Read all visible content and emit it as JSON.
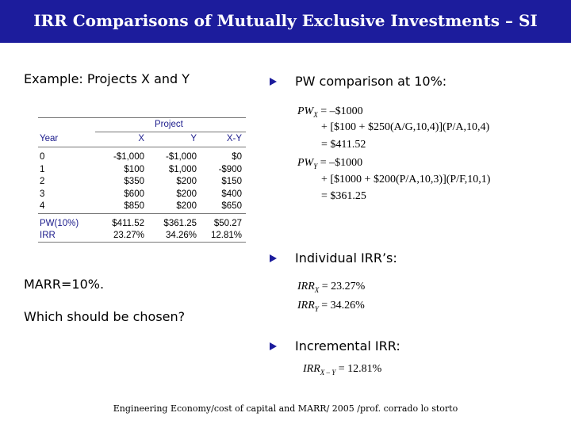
{
  "header": {
    "title": "IRR Comparisons of Mutually Exclusive Investments – SI"
  },
  "left": {
    "example": "Example: Projects X and Y",
    "marr": "MARR=10%.",
    "question": "Which should be chosen?"
  },
  "table": {
    "group_header": "Project",
    "columns": [
      "Year",
      "X",
      "Y",
      "X-Y"
    ],
    "rows": [
      [
        "0",
        "-$1,000",
        "-$1,000",
        "$0"
      ],
      [
        "1",
        "$100",
        "$1,000",
        "-$900"
      ],
      [
        "2",
        "$350",
        "$200",
        "$150"
      ],
      [
        "3",
        "$600",
        "$200",
        "$400"
      ],
      [
        "4",
        "$850",
        "$200",
        "$650"
      ]
    ],
    "summary": [
      [
        "PW(10%)",
        "$411.52",
        "$361.25",
        "$50.27"
      ],
      [
        "IRR",
        "23.27%",
        "34.26%",
        "12.81%"
      ]
    ]
  },
  "bullets": [
    {
      "text": "PW comparison at 10%:",
      "equations": [
        {
          "lhs": "PW",
          "sub": "X",
          "rhs": "= –$1000"
        },
        {
          "rhs": "+ [$100 + $250(A/G,10,4)](P/A,10,4)"
        },
        {
          "rhs": "= $411.52"
        },
        {
          "lhs": "PW",
          "sub": "Y",
          "rhs": "= –$1000"
        },
        {
          "rhs": "+ [$1000 + $200(P/A,10,3)](P/F,10,1)"
        },
        {
          "rhs": "= $361.25"
        }
      ]
    },
    {
      "text": "Individual IRR’s:",
      "equations": [
        {
          "lhs": "IRR",
          "sub": "X",
          "rhs": "= 23.27%"
        },
        {
          "lhs": "IRR",
          "sub": "Y",
          "rhs": "= 34.26%"
        }
      ]
    },
    {
      "text": "Incremental IRR:",
      "equations": [
        {
          "lhs": "IRR",
          "sub": "X – Y",
          "rhs": "= 12.81%"
        }
      ]
    }
  ],
  "footer": "Engineering Economy/cost of capital and MARR/ 2005 /prof. corrado lo storto"
}
